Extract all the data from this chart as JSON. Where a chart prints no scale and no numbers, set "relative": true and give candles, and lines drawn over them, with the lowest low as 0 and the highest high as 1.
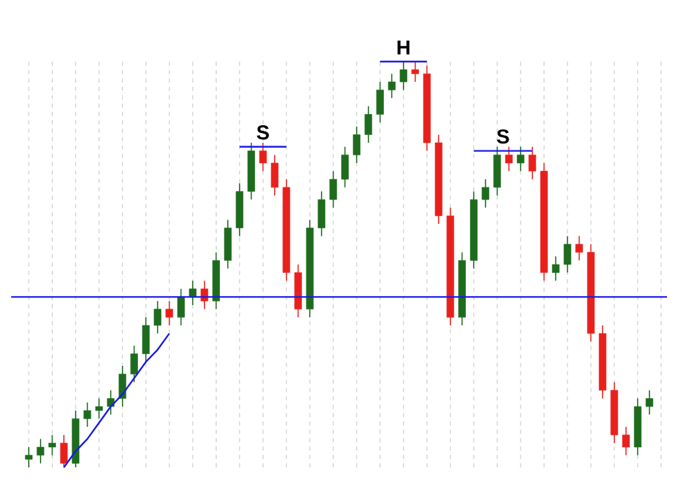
{
  "chart_data": {
    "type": "candlestick",
    "relative": true,
    "grid": "x",
    "tick_labels": false,
    "categories": [
      null,
      null,
      null,
      null,
      null,
      null,
      null,
      null,
      null,
      null,
      null,
      null,
      null,
      null,
      null,
      null,
      null,
      null,
      null,
      null,
      null,
      null,
      null,
      null,
      null,
      null,
      null,
      null,
      null,
      null,
      null,
      null,
      null,
      null,
      null,
      null,
      null,
      null,
      null,
      null,
      null,
      null,
      null,
      null,
      null,
      null,
      null,
      null,
      null,
      null,
      null,
      null,
      null,
      null
    ],
    "ohlc": [
      [
        0.02,
        0.05,
        0.0,
        0.03
      ],
      [
        0.03,
        0.07,
        0.01,
        0.05
      ],
      [
        0.05,
        0.08,
        0.03,
        0.06
      ],
      [
        0.06,
        0.08,
        0.0,
        0.01
      ],
      [
        0.01,
        0.14,
        0.0,
        0.12
      ],
      [
        0.12,
        0.16,
        0.1,
        0.14
      ],
      [
        0.14,
        0.17,
        0.12,
        0.15
      ],
      [
        0.15,
        0.19,
        0.13,
        0.17
      ],
      [
        0.17,
        0.25,
        0.15,
        0.23
      ],
      [
        0.23,
        0.3,
        0.21,
        0.28
      ],
      [
        0.28,
        0.37,
        0.26,
        0.35
      ],
      [
        0.35,
        0.41,
        0.33,
        0.39
      ],
      [
        0.39,
        0.41,
        0.35,
        0.37
      ],
      [
        0.37,
        0.44,
        0.35,
        0.42
      ],
      [
        0.42,
        0.46,
        0.4,
        0.44
      ],
      [
        0.44,
        0.46,
        0.39,
        0.41
      ],
      [
        0.41,
        0.53,
        0.39,
        0.51
      ],
      [
        0.51,
        0.61,
        0.49,
        0.59
      ],
      [
        0.59,
        0.7,
        0.57,
        0.68
      ],
      [
        0.68,
        0.8,
        0.66,
        0.78
      ],
      [
        0.78,
        0.8,
        0.73,
        0.75
      ],
      [
        0.75,
        0.77,
        0.67,
        0.69
      ],
      [
        0.69,
        0.71,
        0.46,
        0.48
      ],
      [
        0.48,
        0.5,
        0.37,
        0.39
      ],
      [
        0.39,
        0.61,
        0.37,
        0.59
      ],
      [
        0.59,
        0.68,
        0.57,
        0.66
      ],
      [
        0.66,
        0.73,
        0.64,
        0.71
      ],
      [
        0.71,
        0.79,
        0.69,
        0.77
      ],
      [
        0.77,
        0.84,
        0.75,
        0.82
      ],
      [
        0.82,
        0.89,
        0.8,
        0.87
      ],
      [
        0.87,
        0.95,
        0.85,
        0.93
      ],
      [
        0.93,
        0.97,
        0.91,
        0.95
      ],
      [
        0.95,
        1.0,
        0.93,
        0.98
      ],
      [
        0.98,
        1.0,
        0.95,
        0.97
      ],
      [
        0.97,
        0.99,
        0.78,
        0.8
      ],
      [
        0.8,
        0.82,
        0.6,
        0.62
      ],
      [
        0.62,
        0.64,
        0.35,
        0.37
      ],
      [
        0.37,
        0.53,
        0.35,
        0.51
      ],
      [
        0.51,
        0.68,
        0.49,
        0.66
      ],
      [
        0.66,
        0.71,
        0.64,
        0.69
      ],
      [
        0.69,
        0.79,
        0.67,
        0.77
      ],
      [
        0.77,
        0.79,
        0.73,
        0.75
      ],
      [
        0.75,
        0.79,
        0.73,
        0.77
      ],
      [
        0.77,
        0.79,
        0.71,
        0.73
      ],
      [
        0.73,
        0.75,
        0.46,
        0.48
      ],
      [
        0.48,
        0.52,
        0.46,
        0.5
      ],
      [
        0.5,
        0.57,
        0.48,
        0.55
      ],
      [
        0.55,
        0.57,
        0.51,
        0.53
      ],
      [
        0.53,
        0.55,
        0.31,
        0.33
      ],
      [
        0.33,
        0.35,
        0.17,
        0.19
      ],
      [
        0.19,
        0.21,
        0.06,
        0.08
      ],
      [
        0.08,
        0.1,
        0.03,
        0.05
      ],
      [
        0.05,
        0.17,
        0.03,
        0.15
      ],
      [
        0.15,
        0.19,
        0.13,
        0.17
      ]
    ],
    "colors": [
      "#1e6b1e",
      "#1e6b1e",
      "#1e6b1e",
      "#e8201c",
      "#1e6b1e",
      "#1e6b1e",
      "#1e6b1e",
      "#1e6b1e",
      "#1e6b1e",
      "#1e6b1e",
      "#1e6b1e",
      "#1e6b1e",
      "#e8201c",
      "#1e6b1e",
      "#1e6b1e",
      "#e8201c",
      "#1e6b1e",
      "#1e6b1e",
      "#1e6b1e",
      "#1e6b1e",
      "#e8201c",
      "#e8201c",
      "#e8201c",
      "#e8201c",
      "#1e6b1e",
      "#1e6b1e",
      "#1e6b1e",
      "#1e6b1e",
      "#1e6b1e",
      "#1e6b1e",
      "#1e6b1e",
      "#1e6b1e",
      "#1e6b1e",
      "#e8201c",
      "#e8201c",
      "#e8201c",
      "#e8201c",
      "#1e6b1e",
      "#1e6b1e",
      "#1e6b1e",
      "#1e6b1e",
      "#e8201c",
      "#1e6b1e",
      "#e8201c",
      "#e8201c",
      "#1e6b1e",
      "#1e6b1e",
      "#e8201c",
      "#e8201c",
      "#e8201c",
      "#e8201c",
      "#e8201c",
      "#1e6b1e",
      "#1e6b1e"
    ],
    "series": [
      {
        "type": "line",
        "color": "#1a1ae6",
        "values": [
          null,
          null,
          null,
          0.0,
          0.04,
          0.07,
          0.11,
          0.15,
          0.18,
          0.22,
          0.26,
          0.29,
          0.33,
          null,
          null,
          null,
          null,
          null,
          null,
          null,
          null,
          null,
          null,
          null,
          null,
          null,
          null,
          null,
          null,
          null,
          null,
          null,
          null,
          null,
          null,
          null,
          null,
          null,
          null,
          null,
          null,
          null,
          null,
          null,
          null,
          null,
          null,
          null,
          null,
          null,
          null,
          null,
          null,
          null
        ]
      },
      {
        "type": "line",
        "color": "#1a1ae6",
        "values": [
          null,
          null,
          null,
          null,
          null,
          null,
          null,
          null,
          null,
          null,
          null,
          null,
          null,
          null,
          null,
          null,
          null,
          null,
          0.79,
          0.79,
          0.79,
          0.79,
          0.79,
          null,
          null,
          null,
          null,
          null,
          null,
          null,
          null,
          null,
          null,
          null,
          null,
          null,
          null,
          null,
          null,
          null,
          null,
          null,
          null,
          null,
          null,
          null,
          null,
          null,
          null,
          null,
          null,
          null,
          null,
          null
        ]
      },
      {
        "type": "line",
        "color": "#1a1ae6",
        "values": [
          null,
          null,
          null,
          null,
          null,
          null,
          null,
          null,
          null,
          null,
          null,
          null,
          null,
          null,
          null,
          null,
          null,
          null,
          null,
          null,
          null,
          null,
          null,
          null,
          null,
          null,
          null,
          null,
          null,
          null,
          1.0,
          1.0,
          1.0,
          1.0,
          1.0,
          null,
          null,
          null,
          null,
          null,
          null,
          null,
          null,
          null,
          null,
          null,
          null,
          null,
          null,
          null,
          null,
          null,
          null,
          null
        ]
      },
      {
        "type": "line",
        "color": "#1a1ae6",
        "values": [
          null,
          null,
          null,
          null,
          null,
          null,
          null,
          null,
          null,
          null,
          null,
          null,
          null,
          null,
          null,
          null,
          null,
          null,
          null,
          null,
          null,
          null,
          null,
          null,
          null,
          null,
          null,
          null,
          null,
          null,
          null,
          null,
          null,
          null,
          null,
          null,
          null,
          null,
          0.78,
          0.78,
          0.78,
          0.78,
          0.78,
          0.78,
          null,
          null,
          null,
          null,
          null,
          null,
          null,
          null,
          null,
          null
        ]
      }
    ],
    "ref_lines": [
      {
        "axis": "y",
        "value": 0.42,
        "color": "#1a1ae6"
      }
    ],
    "annotations": [
      "S",
      "H",
      "S"
    ]
  }
}
